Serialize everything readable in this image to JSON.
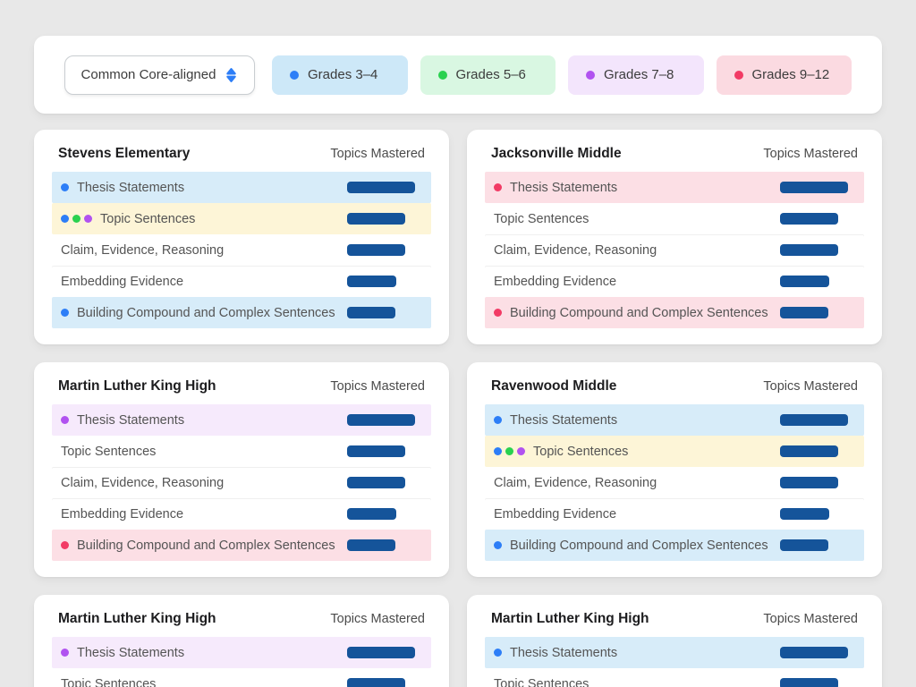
{
  "colors": {
    "page_bg": "#e8e8e8",
    "bar": "#15549a",
    "grade_dots": {
      "grades_3_4": "#2d7ef7",
      "grades_5_6": "#2ad14f",
      "grades_7_8": "#b152f0",
      "grades_9_12": "#f23b65"
    },
    "row_highlights": {
      "blue": "#d7ecf9",
      "yellow": "#fdf5d7",
      "purple": "#f6eafc",
      "pink": "#fcdfe5"
    }
  },
  "toolbar": {
    "dropdown_value": "Common Core-aligned",
    "legend": [
      {
        "label": "Grades 3–4",
        "dot": "#2d7ef7",
        "bg": "#cde8f8"
      },
      {
        "label": "Grades 5–6",
        "dot": "#2ad14f",
        "bg": "#d9f7e2"
      },
      {
        "label": "Grades 7–8",
        "dot": "#b152f0",
        "bg": "#f3e5fc"
      },
      {
        "label": "Grades 9–12",
        "dot": "#f23b65",
        "bg": "#fbdae1"
      }
    ]
  },
  "labels": {
    "topics_mastered": "Topics Mastered"
  },
  "cards": [
    {
      "title": "Stevens Elementary",
      "rows": [
        {
          "label": "Thesis Statements",
          "dots": [
            "#2d7ef7"
          ],
          "highlight": "#d7ecf9",
          "bar": 76
        },
        {
          "label": "Topic Sentences",
          "dots": [
            "#2d7ef7",
            "#2ad14f",
            "#b152f0"
          ],
          "highlight": "#fdf5d7",
          "bar": 65
        },
        {
          "label": "Claim, Evidence, Reasoning",
          "dots": [],
          "highlight": null,
          "bar": 65
        },
        {
          "label": "Embedding Evidence",
          "dots": [],
          "highlight": null,
          "bar": 55
        },
        {
          "label": "Building Compound and Complex Sentences",
          "dots": [
            "#2d7ef7"
          ],
          "highlight": "#d7ecf9",
          "bar": 54
        }
      ]
    },
    {
      "title": "Jacksonville Middle",
      "rows": [
        {
          "label": "Thesis Statements",
          "dots": [
            "#f23b65"
          ],
          "highlight": "#fcdfe5",
          "bar": 76
        },
        {
          "label": "Topic Sentences",
          "dots": [],
          "highlight": null,
          "bar": 65
        },
        {
          "label": "Claim, Evidence, Reasoning",
          "dots": [],
          "highlight": null,
          "bar": 65
        },
        {
          "label": "Embedding Evidence",
          "dots": [],
          "highlight": null,
          "bar": 55
        },
        {
          "label": "Building Compound and Complex Sentences",
          "dots": [
            "#f23b65"
          ],
          "highlight": "#fcdfe5",
          "bar": 54
        }
      ]
    },
    {
      "title": "Martin Luther King High",
      "rows": [
        {
          "label": "Thesis Statements",
          "dots": [
            "#b152f0"
          ],
          "highlight": "#f6eafc",
          "bar": 76
        },
        {
          "label": "Topic Sentences",
          "dots": [],
          "highlight": null,
          "bar": 65
        },
        {
          "label": "Claim, Evidence, Reasoning",
          "dots": [],
          "highlight": null,
          "bar": 65
        },
        {
          "label": "Embedding Evidence",
          "dots": [],
          "highlight": null,
          "bar": 55
        },
        {
          "label": "Building Compound and Complex Sentences",
          "dots": [
            "#f23b65"
          ],
          "highlight": "#fcdfe5",
          "bar": 54
        }
      ]
    },
    {
      "title": "Ravenwood Middle",
      "rows": [
        {
          "label": "Thesis Statements",
          "dots": [
            "#2d7ef7"
          ],
          "highlight": "#d7ecf9",
          "bar": 76
        },
        {
          "label": "Topic Sentences",
          "dots": [
            "#2d7ef7",
            "#2ad14f",
            "#b152f0"
          ],
          "highlight": "#fdf5d7",
          "bar": 65
        },
        {
          "label": "Claim, Evidence, Reasoning",
          "dots": [],
          "highlight": null,
          "bar": 65
        },
        {
          "label": "Embedding Evidence",
          "dots": [],
          "highlight": null,
          "bar": 55
        },
        {
          "label": "Building Compound and Complex Sentences",
          "dots": [
            "#2d7ef7"
          ],
          "highlight": "#d7ecf9",
          "bar": 54
        }
      ]
    },
    {
      "title": "Martin Luther King High",
      "rows": [
        {
          "label": "Thesis Statements",
          "dots": [
            "#b152f0"
          ],
          "highlight": "#f6eafc",
          "bar": 76
        },
        {
          "label": "Topic Sentences",
          "dots": [],
          "highlight": null,
          "bar": 65
        }
      ]
    },
    {
      "title": "Martin Luther King High",
      "rows": [
        {
          "label": "Thesis Statements",
          "dots": [
            "#2d7ef7"
          ],
          "highlight": "#d7ecf9",
          "bar": 76
        },
        {
          "label": "Topic Sentences",
          "dots": [],
          "highlight": null,
          "bar": 65
        }
      ]
    }
  ]
}
